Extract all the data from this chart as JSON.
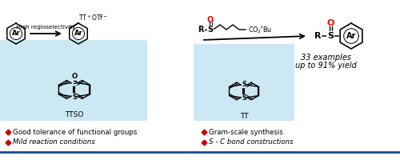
{
  "bg_color": "#ffffff",
  "box1_color": "#cce8f4",
  "box2_color": "#cce8f4",
  "red_color": "#ff0000",
  "bullet_color": "#cc0000",
  "bullet1": "Good tolerance of functional groups",
  "bullet2": "Mild reaction conditions",
  "bullet3": "Gram-scale synthesis",
  "bullet4": "S - C bond constructions",
  "label_TTSO": "TTSO",
  "label_TT": "TT",
  "label_examples": "33 examples",
  "label_yield": "up to 91% yield",
  "label_high_regio": "High regioselectivity",
  "label_Ar1": "Ar",
  "label_Ar2": "Ar",
  "label_Ar3": "Ar",
  "label_R1": "R",
  "label_R2": "R"
}
